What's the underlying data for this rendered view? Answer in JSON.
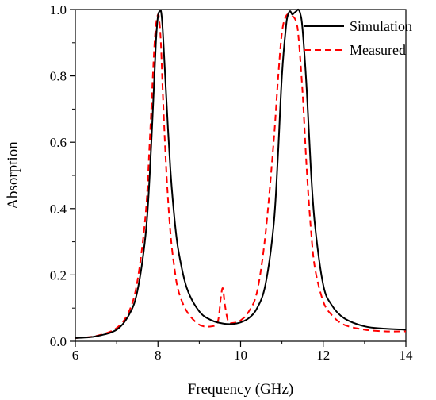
{
  "chart_data": {
    "type": "line",
    "title": "",
    "xlabel": "Frequency (GHz)",
    "ylabel": "Absorption",
    "xlim": [
      6,
      14
    ],
    "ylim": [
      0,
      1.0
    ],
    "xticks": [
      6,
      8,
      10,
      12,
      14
    ],
    "yticks": [
      0.0,
      0.2,
      0.4,
      0.6,
      0.8,
      1.0
    ],
    "xtick_labels": [
      "6",
      "8",
      "10",
      "12",
      "14"
    ],
    "ytick_labels": [
      "0.0",
      "0.2",
      "0.4",
      "0.6",
      "0.8",
      "1.0"
    ],
    "grid": false,
    "legend_position": "top-right",
    "series": [
      {
        "name": "Simulation",
        "color": "#000000",
        "dash": "solid",
        "x": [
          6.0,
          6.5,
          7.0,
          7.3,
          7.5,
          7.7,
          7.8,
          7.9,
          7.95,
          8.0,
          8.05,
          8.08,
          8.12,
          8.2,
          8.3,
          8.4,
          8.5,
          8.7,
          9.0,
          9.3,
          9.6,
          9.8,
          10.0,
          10.2,
          10.4,
          10.6,
          10.8,
          10.9,
          11.0,
          11.1,
          11.15,
          11.2,
          11.25,
          11.3,
          11.35,
          11.4,
          11.45,
          11.5,
          11.6,
          11.7,
          11.8,
          12.0,
          12.2,
          12.5,
          13.0,
          13.5,
          14.0
        ],
        "y": [
          0.01,
          0.015,
          0.035,
          0.08,
          0.15,
          0.32,
          0.5,
          0.76,
          0.9,
          0.98,
          0.995,
          0.99,
          0.93,
          0.74,
          0.52,
          0.37,
          0.27,
          0.16,
          0.09,
          0.063,
          0.053,
          0.052,
          0.057,
          0.07,
          0.1,
          0.17,
          0.35,
          0.55,
          0.8,
          0.95,
          0.985,
          0.995,
          0.985,
          0.99,
          0.995,
          1.0,
          0.985,
          0.94,
          0.76,
          0.52,
          0.35,
          0.17,
          0.11,
          0.07,
          0.045,
          0.038,
          0.035
        ]
      },
      {
        "name": "Measured",
        "color": "#ff0000",
        "dash": "dashed",
        "x": [
          6.0,
          6.5,
          7.0,
          7.3,
          7.5,
          7.7,
          7.8,
          7.9,
          7.95,
          8.0,
          8.03,
          8.07,
          8.12,
          8.2,
          8.3,
          8.4,
          8.5,
          8.7,
          9.0,
          9.3,
          9.45,
          9.52,
          9.57,
          9.62,
          9.7,
          9.8,
          10.0,
          10.2,
          10.4,
          10.6,
          10.8,
          10.9,
          11.0,
          11.1,
          11.2,
          11.25,
          11.3,
          11.35,
          11.4,
          11.5,
          11.6,
          11.7,
          11.8,
          12.0,
          12.2,
          12.5,
          13.0,
          13.5,
          14.0
        ],
        "y": [
          0.01,
          0.016,
          0.04,
          0.09,
          0.18,
          0.38,
          0.6,
          0.86,
          0.95,
          0.985,
          0.97,
          0.9,
          0.74,
          0.52,
          0.33,
          0.22,
          0.15,
          0.09,
          0.05,
          0.045,
          0.06,
          0.13,
          0.16,
          0.11,
          0.06,
          0.055,
          0.063,
          0.09,
          0.15,
          0.32,
          0.6,
          0.78,
          0.93,
          0.98,
          0.985,
          0.98,
          0.975,
          0.96,
          0.92,
          0.75,
          0.52,
          0.34,
          0.22,
          0.12,
          0.08,
          0.05,
          0.035,
          0.03,
          0.03
        ]
      }
    ]
  }
}
